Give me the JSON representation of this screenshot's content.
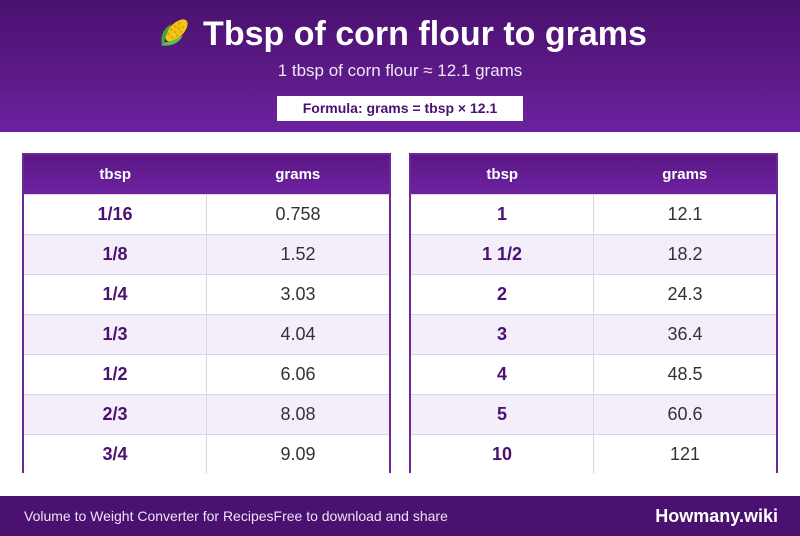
{
  "header": {
    "title": "Tbsp of corn flour to grams",
    "icon": "corn-icon",
    "subtitle": "1 tbsp of corn flour ≈ 12.1 grams",
    "formula": "Formula: grams = tbsp × 12.1"
  },
  "tables": [
    {
      "headers": [
        "tbsp",
        "grams"
      ],
      "rows": [
        [
          "1/16",
          "0.758"
        ],
        [
          "1/8",
          "1.52"
        ],
        [
          "1/4",
          "3.03"
        ],
        [
          "1/3",
          "4.04"
        ],
        [
          "1/2",
          "6.06"
        ],
        [
          "2/3",
          "8.08"
        ],
        [
          "3/4",
          "9.09"
        ]
      ]
    },
    {
      "headers": [
        "tbsp",
        "grams"
      ],
      "rows": [
        [
          "1",
          "12.1"
        ],
        [
          "1 1/2",
          "18.2"
        ],
        [
          "2",
          "24.3"
        ],
        [
          "3",
          "36.4"
        ],
        [
          "4",
          "48.5"
        ],
        [
          "5",
          "60.6"
        ],
        [
          "10",
          "121"
        ]
      ]
    }
  ],
  "footer": {
    "left_1": "Volume to Weight Converter for Recipes",
    "left_2": "Free to download and share",
    "brand": "Howmany.wiki"
  },
  "colors": {
    "primary": "#4a1170",
    "accent": "#6d22a0",
    "row_alt": "#f3eefa"
  }
}
